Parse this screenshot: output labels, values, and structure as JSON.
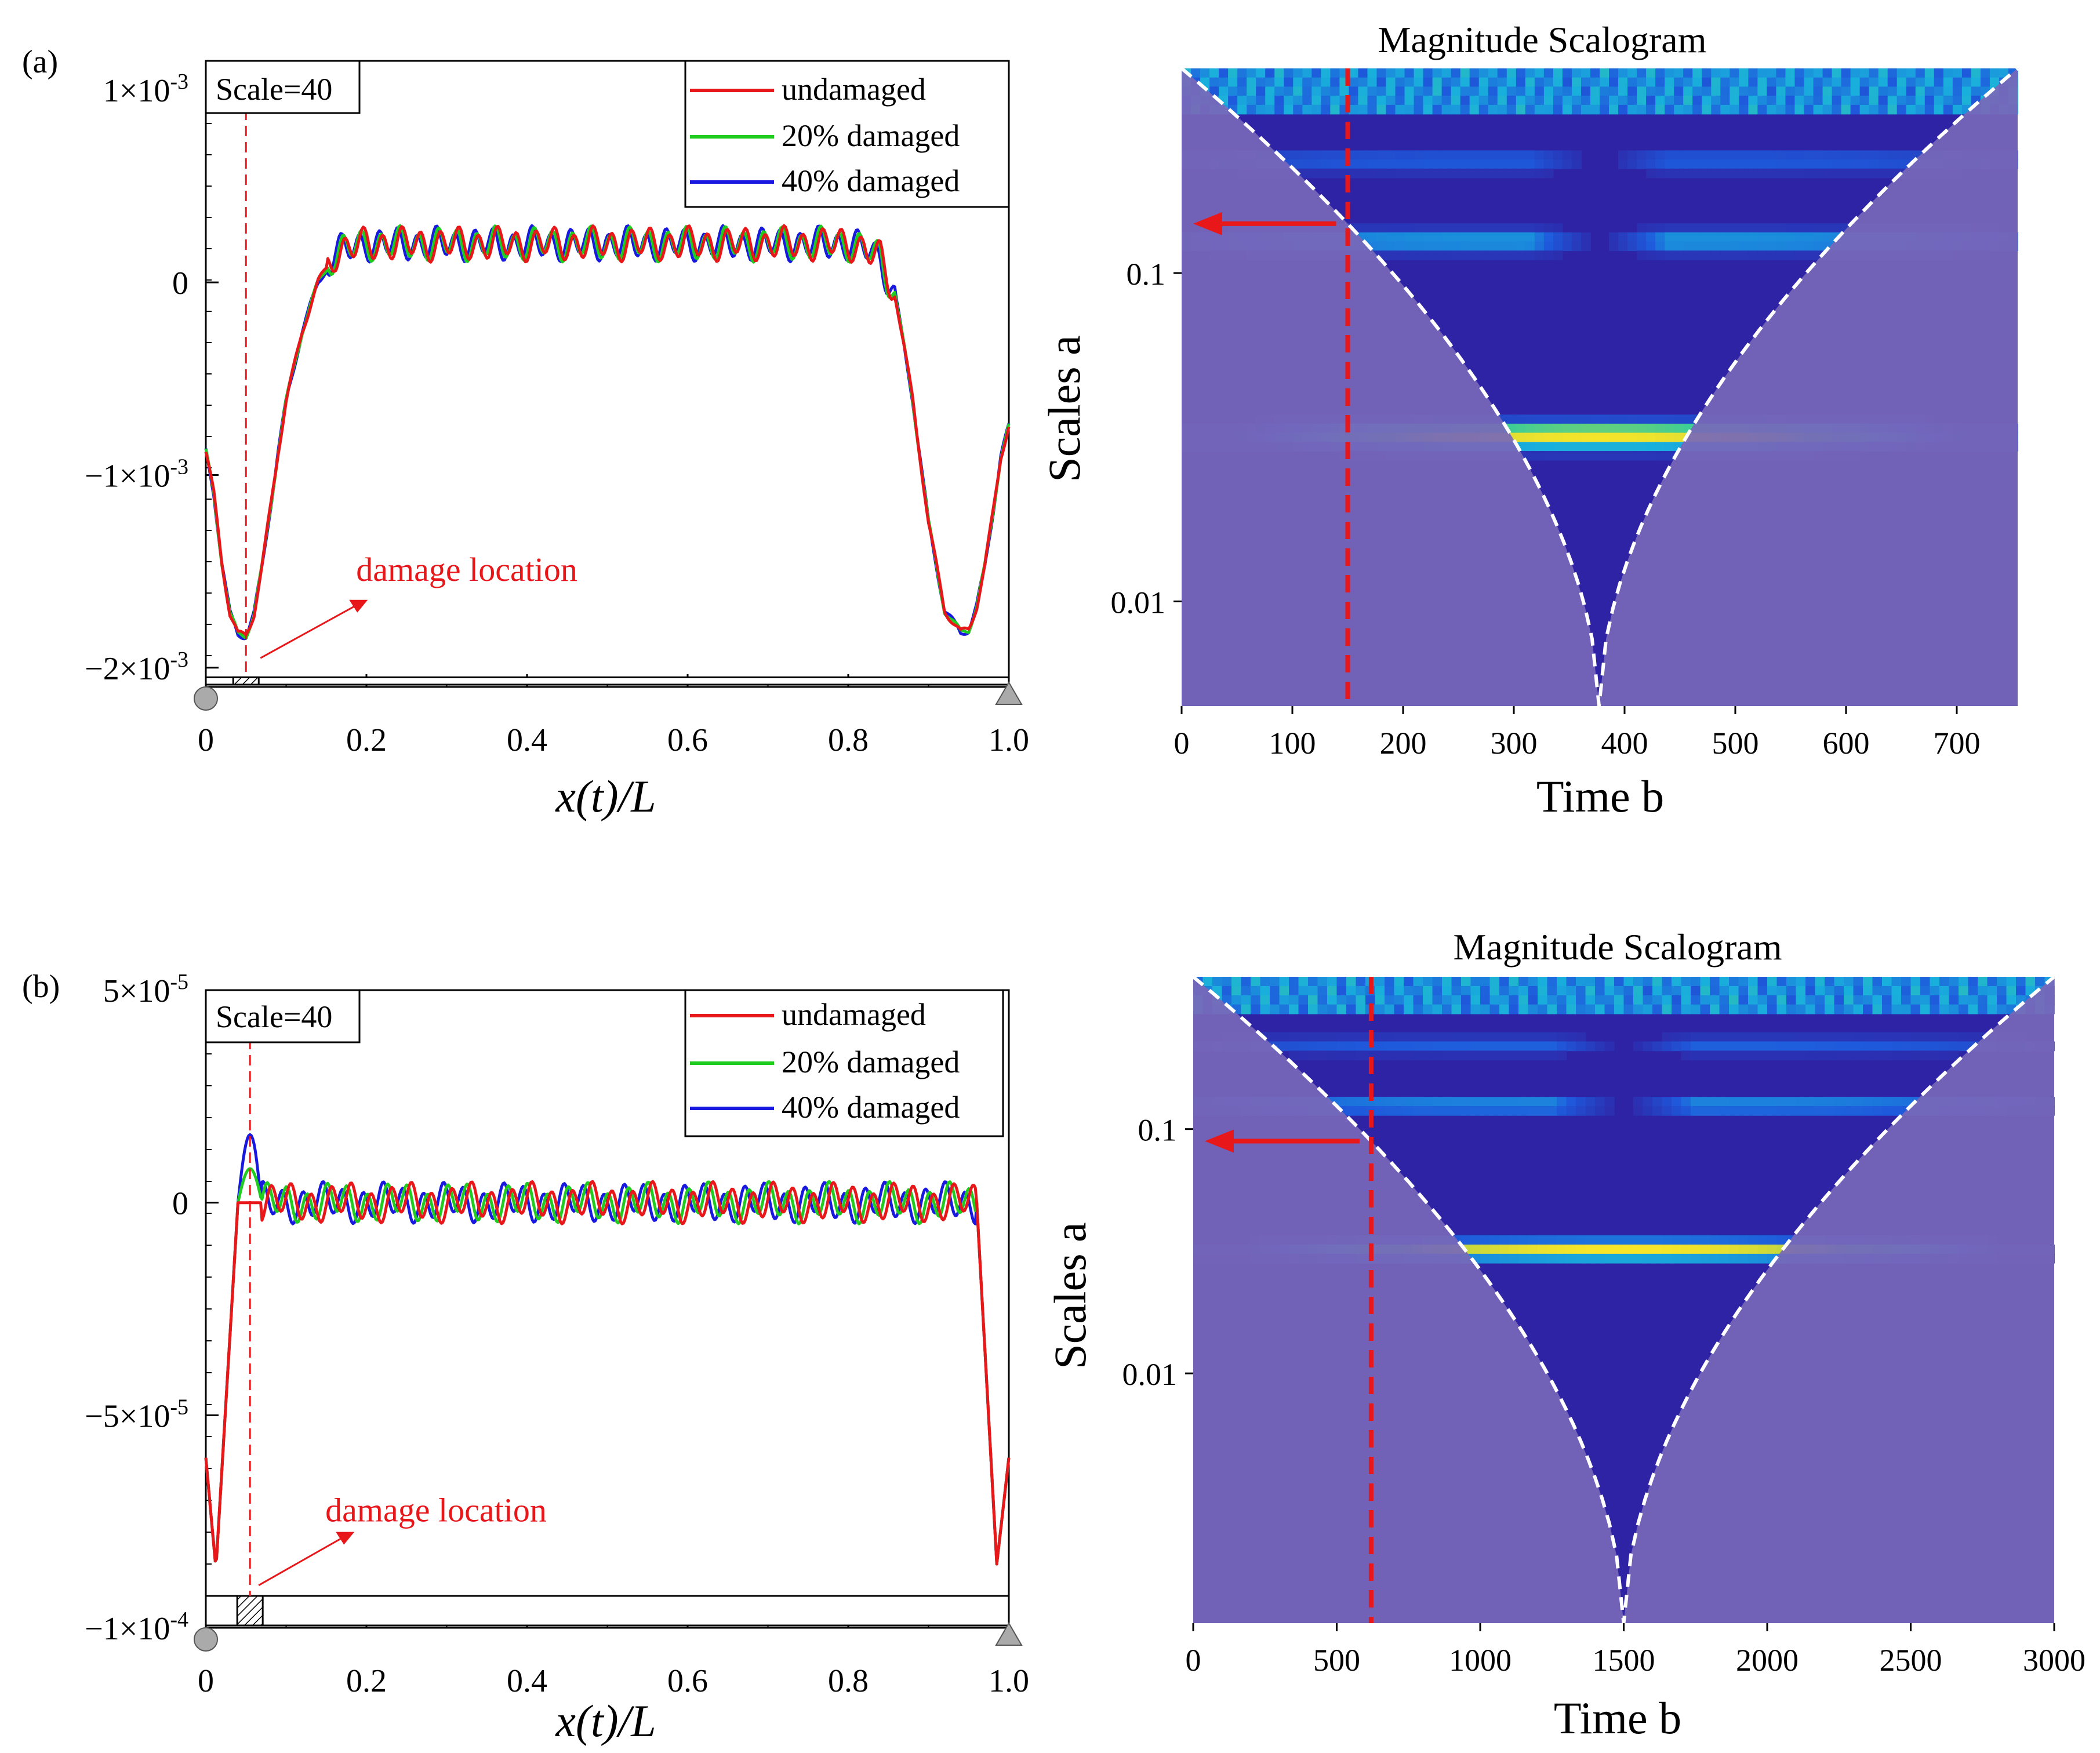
{
  "colors": {
    "undamaged": "#e8171a",
    "damaged20": "#1fcc1f",
    "damaged40": "#1818e0",
    "damage_marker": "#e8171a",
    "scalogram_background": "#2e23a4",
    "scalogram_cone_shade": "#7868b8",
    "cone_boundary": "#ffffff"
  },
  "chart_data": [
    {
      "type": "line",
      "panel_label": "(a)",
      "inset_label": "Scale=40",
      "xlabel": "x(t)/L",
      "ylabel": "",
      "xlim": [
        0,
        1
      ],
      "ylim": [
        -0.0021,
        0.00115
      ],
      "xticks": [
        "0",
        "0.2",
        "0.4",
        "0.6",
        "0.8",
        "1.0"
      ],
      "yticks": [
        {
          "value": 0.001,
          "mant": "1",
          "exp": "-3"
        },
        {
          "value": 0,
          "mant": "0",
          "exp": ""
        },
        {
          "value": -0.001,
          "mant": "−1",
          "exp": "-3"
        },
        {
          "value": -0.002,
          "mant": "−2",
          "exp": "-3"
        }
      ],
      "damage_location_x": 0.05,
      "annotation": "damage location",
      "beam_bottom": -0.00205,
      "series": [
        {
          "name": "undamaged",
          "values_desc": "base",
          "x": [
            0,
            0.01,
            0.02,
            0.03,
            0.04,
            0.05,
            0.06,
            0.07,
            0.08,
            0.09,
            0.1,
            0.12,
            0.14,
            0.16,
            0.18,
            0.2,
            0.5,
            0.8,
            0.82,
            0.84,
            0.86,
            0.88,
            0.9,
            0.92,
            0.94,
            0.95,
            0.96,
            0.97,
            0.98,
            0.99,
            1.0
          ],
          "y": [
            -0.00088,
            -0.0011,
            -0.00145,
            -0.00172,
            -0.00183,
            -0.00183,
            -0.00172,
            -0.00148,
            -0.00118,
            -0.00088,
            -0.00062,
            -0.00025,
            0.0,
            0.00015,
            0.00018,
            0.0002,
            0.0002,
            0.0002,
            0.00018,
            0.00012,
            -0.0001,
            -0.0006,
            -0.00125,
            -0.0017,
            -0.00182,
            -0.0018,
            -0.00168,
            -0.00148,
            -0.0012,
            -0.0009,
            -0.00075
          ]
        },
        {
          "name": "20% damaged",
          "values_desc": "",
          "x": [],
          "y": []
        },
        {
          "name": "40% damaged",
          "values_desc": "",
          "x": [],
          "y": []
        }
      ]
    },
    {
      "type": "heatmap",
      "title": "Magnitude Scalogram",
      "xlabel": "Time b",
      "ylabel": "Scales a",
      "xlim": [
        0,
        755
      ],
      "xticks": [
        0,
        100,
        200,
        300,
        400,
        500,
        600,
        700
      ],
      "yticks": [
        "0.1",
        "0.01"
      ],
      "ytick_values": [
        0.1,
        0.01
      ],
      "ylim_log": [
        0.0048,
        0.42
      ],
      "marker_time": 150,
      "cone_bottom_time": 377,
      "bands": [
        {
          "scale": 0.032,
          "peak": 1.0,
          "width": 0.06,
          "split_at": null
        },
        {
          "scale": 0.125,
          "peak": 0.55,
          "width": 0.05,
          "split_at": 377
        },
        {
          "scale": 0.22,
          "peak": 0.35,
          "width": 0.05,
          "split_at": 377
        }
      ]
    },
    {
      "type": "line",
      "panel_label": "(b)",
      "inset_label": "Scale=40",
      "xlabel": "x(t)/L",
      "ylabel": "",
      "xlim": [
        0,
        1
      ],
      "ylim": [
        -0.0001,
        5e-05
      ],
      "xticks": [
        "0",
        "0.2",
        "0.4",
        "0.6",
        "0.8",
        "1.0"
      ],
      "yticks": [
        {
          "value": 5e-05,
          "mant": "5",
          "exp": "-5"
        },
        {
          "value": 0,
          "mant": "0",
          "exp": ""
        },
        {
          "value": -5e-05,
          "mant": "−5",
          "exp": "-5"
        },
        {
          "value": -0.0001,
          "mant": "−1",
          "exp": "-4"
        }
      ],
      "damage_location_x": 0.055,
      "annotation": "damage location",
      "beam_bottom": -9.25e-05,
      "series": [
        {
          "name": "undamaged"
        },
        {
          "name": "20% damaged"
        },
        {
          "name": "40% damaged"
        }
      ]
    },
    {
      "type": "heatmap",
      "title": "Magnitude Scalogram",
      "xlabel": "Time b",
      "ylabel": "Scales a",
      "xlim": [
        0,
        3000
      ],
      "xticks": [
        0,
        500,
        1000,
        1500,
        2000,
        2500,
        3000
      ],
      "yticks": [
        "0.1",
        "0.01"
      ],
      "ytick_values": [
        0.1,
        0.01
      ],
      "ylim_log": [
        0.00095,
        0.42
      ],
      "marker_time": 620,
      "cone_bottom_time": 1500,
      "bands": [
        {
          "scale": 0.032,
          "peak": 1.0,
          "width": 0.06,
          "split_at": null
        },
        {
          "scale": 0.125,
          "peak": 0.55,
          "width": 0.05,
          "split_at": 1500
        },
        {
          "scale": 0.22,
          "peak": 0.35,
          "width": 0.05,
          "split_at": 1500
        }
      ]
    }
  ]
}
